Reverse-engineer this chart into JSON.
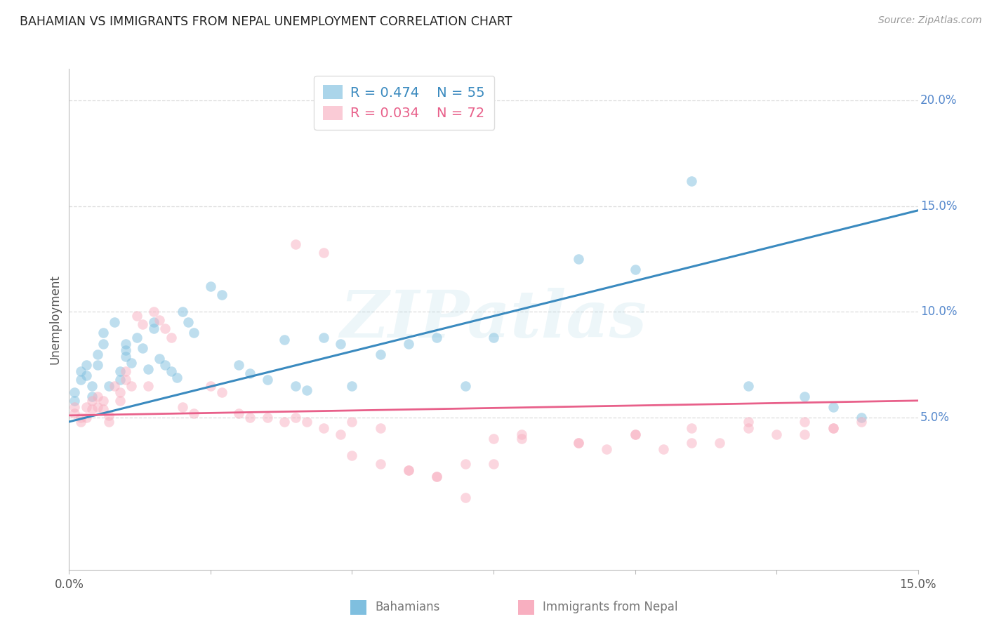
{
  "title": "BAHAMIAN VS IMMIGRANTS FROM NEPAL UNEMPLOYMENT CORRELATION CHART",
  "source": "Source: ZipAtlas.com",
  "ylabel": "Unemployment",
  "watermark": "ZIPatlas",
  "xmin": 0.0,
  "xmax": 0.15,
  "ymin": -0.022,
  "ymax": 0.215,
  "blue_color": "#7fbfdf",
  "pink_color": "#f8afc0",
  "blue_line_color": "#3a8abf",
  "pink_line_color": "#e8608a",
  "right_axis_color": "#5588cc",
  "title_color": "#222222",
  "axis_label_color": "#555555",
  "grid_color": "#dddddd",
  "background_color": "#ffffff",
  "legend_blue_label": "Bahamians",
  "legend_pink_label": "Immigrants from Nepal",
  "legend_R_blue": "R = 0.474",
  "legend_N_blue": "N = 55",
  "legend_R_pink": "R = 0.034",
  "legend_N_pink": "N = 72",
  "blue_trendline_x": [
    0.0,
    0.15
  ],
  "blue_trendline_y": [
    0.048,
    0.148
  ],
  "pink_trendline_x": [
    0.0,
    0.15
  ],
  "pink_trendline_y": [
    0.051,
    0.058
  ],
  "blue_scatter_x": [
    0.001,
    0.001,
    0.002,
    0.002,
    0.003,
    0.003,
    0.004,
    0.004,
    0.005,
    0.005,
    0.006,
    0.006,
    0.007,
    0.008,
    0.009,
    0.009,
    0.01,
    0.01,
    0.01,
    0.011,
    0.012,
    0.013,
    0.014,
    0.015,
    0.015,
    0.016,
    0.017,
    0.018,
    0.019,
    0.02,
    0.021,
    0.022,
    0.025,
    0.027,
    0.03,
    0.032,
    0.035,
    0.038,
    0.04,
    0.042,
    0.045,
    0.048,
    0.05,
    0.055,
    0.06,
    0.065,
    0.07,
    0.075,
    0.09,
    0.1,
    0.11,
    0.12,
    0.13,
    0.135,
    0.14
  ],
  "blue_scatter_y": [
    0.062,
    0.058,
    0.072,
    0.068,
    0.075,
    0.07,
    0.065,
    0.06,
    0.08,
    0.075,
    0.09,
    0.085,
    0.065,
    0.095,
    0.072,
    0.068,
    0.085,
    0.082,
    0.079,
    0.076,
    0.088,
    0.083,
    0.073,
    0.095,
    0.092,
    0.078,
    0.075,
    0.072,
    0.069,
    0.1,
    0.095,
    0.09,
    0.112,
    0.108,
    0.075,
    0.071,
    0.068,
    0.087,
    0.065,
    0.063,
    0.088,
    0.085,
    0.065,
    0.08,
    0.085,
    0.088,
    0.065,
    0.088,
    0.125,
    0.12,
    0.162,
    0.065,
    0.06,
    0.055,
    0.05
  ],
  "pink_scatter_x": [
    0.001,
    0.001,
    0.002,
    0.002,
    0.003,
    0.003,
    0.004,
    0.004,
    0.005,
    0.005,
    0.006,
    0.006,
    0.007,
    0.007,
    0.008,
    0.009,
    0.009,
    0.01,
    0.01,
    0.011,
    0.012,
    0.013,
    0.014,
    0.015,
    0.016,
    0.017,
    0.018,
    0.02,
    0.022,
    0.025,
    0.027,
    0.03,
    0.032,
    0.035,
    0.038,
    0.04,
    0.042,
    0.045,
    0.048,
    0.05,
    0.055,
    0.06,
    0.065,
    0.07,
    0.075,
    0.08,
    0.09,
    0.095,
    0.1,
    0.11,
    0.12,
    0.13,
    0.135,
    0.04,
    0.045,
    0.05,
    0.055,
    0.06,
    0.065,
    0.07,
    0.075,
    0.08,
    0.09,
    0.1,
    0.11,
    0.12,
    0.13,
    0.14,
    0.135,
    0.125,
    0.115,
    0.105
  ],
  "pink_scatter_y": [
    0.055,
    0.052,
    0.05,
    0.048,
    0.055,
    0.05,
    0.058,
    0.054,
    0.06,
    0.055,
    0.058,
    0.054,
    0.051,
    0.048,
    0.065,
    0.062,
    0.058,
    0.072,
    0.068,
    0.065,
    0.098,
    0.094,
    0.065,
    0.1,
    0.096,
    0.092,
    0.088,
    0.055,
    0.052,
    0.065,
    0.062,
    0.052,
    0.05,
    0.05,
    0.048,
    0.05,
    0.048,
    0.045,
    0.042,
    0.032,
    0.028,
    0.025,
    0.022,
    0.012,
    0.028,
    0.04,
    0.038,
    0.035,
    0.042,
    0.045,
    0.048,
    0.048,
    0.045,
    0.132,
    0.128,
    0.048,
    0.045,
    0.025,
    0.022,
    0.028,
    0.04,
    0.042,
    0.038,
    0.042,
    0.038,
    0.045,
    0.042,
    0.048,
    0.045,
    0.042,
    0.038,
    0.035
  ]
}
